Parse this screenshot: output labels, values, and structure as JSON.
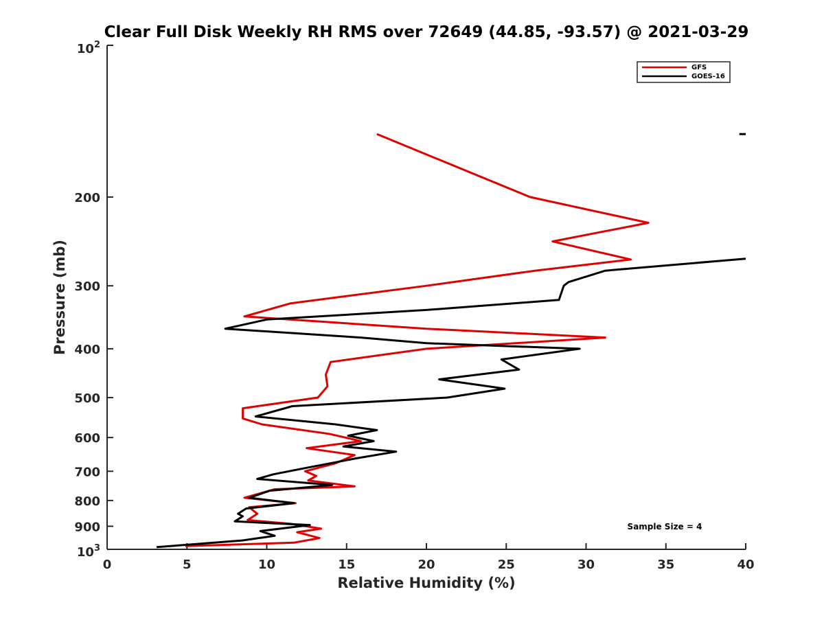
{
  "chart_data": {
    "type": "line",
    "title": "Clear Full Disk Weekly RH RMS over 72649 (44.85, -93.57) @ 2021-03-29",
    "xlabel": "Relative Humidity (%)",
    "ylabel": "Pressure (mb)",
    "xlim": [
      0,
      40
    ],
    "ylim": [
      100,
      1000
    ],
    "y_scale": "log",
    "y_reversed": true,
    "x_ticks": [
      "0",
      "5",
      "10",
      "15",
      "20",
      "25",
      "30",
      "35",
      "40"
    ],
    "y_ticks": [
      {
        "value": 200,
        "label": "200"
      },
      {
        "value": 300,
        "label": "300"
      },
      {
        "value": 400,
        "label": "400"
      },
      {
        "value": 500,
        "label": "500"
      },
      {
        "value": 600,
        "label": "600"
      },
      {
        "value": 700,
        "label": "700"
      },
      {
        "value": 800,
        "label": "800"
      },
      {
        "value": 900,
        "label": "900"
      }
    ],
    "y_end_labels": {
      "top_base": "10",
      "top_exp": "2",
      "bottom_base": "10",
      "bottom_exp": "3"
    },
    "grid": false,
    "legend_position": "top-right",
    "annotation": "Sample Size = 4",
    "series": [
      {
        "name": "GFS",
        "color": "#e00000",
        "points": [
          [
            16.9,
            150
          ],
          [
            26.5,
            200
          ],
          [
            33.9,
            225
          ],
          [
            27.9,
            245
          ],
          [
            32.8,
            266
          ],
          [
            26.8,
            280
          ],
          [
            20.0,
            300
          ],
          [
            11.5,
            325
          ],
          [
            8.6,
            345
          ],
          [
            20.0,
            365
          ],
          [
            31.2,
            380
          ],
          [
            20.0,
            400
          ],
          [
            14.0,
            425
          ],
          [
            13.7,
            450
          ],
          [
            13.8,
            475
          ],
          [
            13.2,
            500
          ],
          [
            8.5,
            525
          ],
          [
            8.5,
            550
          ],
          [
            9.7,
            565
          ],
          [
            13.9,
            590
          ],
          [
            15.9,
            610
          ],
          [
            12.5,
            630
          ],
          [
            15.5,
            650
          ],
          [
            14.3,
            675
          ],
          [
            12.4,
            700
          ],
          [
            13.1,
            715
          ],
          [
            12.6,
            730
          ],
          [
            15.5,
            750
          ],
          [
            10.5,
            760
          ],
          [
            8.6,
            790
          ],
          [
            11.8,
            810
          ],
          [
            8.9,
            825
          ],
          [
            9.4,
            850
          ],
          [
            8.8,
            875
          ],
          [
            11.5,
            890
          ],
          [
            13.4,
            910
          ],
          [
            11.9,
            925
          ],
          [
            13.3,
            950
          ],
          [
            11.7,
            970
          ],
          [
            4.9,
            985
          ]
        ]
      },
      {
        "name": "GOES-16",
        "color": "#000000",
        "points": [
          [
            40.0,
            265
          ],
          [
            31.2,
            280
          ],
          [
            28.9,
            295
          ],
          [
            28.6,
            300
          ],
          [
            28.3,
            320
          ],
          [
            20.0,
            335
          ],
          [
            10.0,
            350
          ],
          [
            7.4,
            365
          ],
          [
            15.9,
            380
          ],
          [
            20.0,
            390
          ],
          [
            29.6,
            400
          ],
          [
            24.7,
            420
          ],
          [
            25.8,
            440
          ],
          [
            20.8,
            460
          ],
          [
            24.9,
            480
          ],
          [
            21.3,
            500
          ],
          [
            11.6,
            520
          ],
          [
            9.3,
            545
          ],
          [
            14.3,
            565
          ],
          [
            16.9,
            580
          ],
          [
            15.1,
            595
          ],
          [
            16.7,
            610
          ],
          [
            14.8,
            625
          ],
          [
            18.1,
            640
          ],
          [
            15.6,
            660
          ],
          [
            12.4,
            690
          ],
          [
            10.4,
            710
          ],
          [
            9.4,
            725
          ],
          [
            14.1,
            745
          ],
          [
            10.2,
            765
          ],
          [
            8.9,
            790
          ],
          [
            11.7,
            810
          ],
          [
            8.7,
            830
          ],
          [
            8.2,
            850
          ],
          [
            8.5,
            860
          ],
          [
            8.0,
            880
          ],
          [
            12.7,
            895
          ],
          [
            9.6,
            920
          ],
          [
            10.5,
            940
          ],
          [
            8.5,
            960
          ],
          [
            3.1,
            990
          ]
        ]
      }
    ],
    "extra_marks": [
      {
        "color": "#000000",
        "from": [
          39.6,
          150
        ],
        "to": [
          40.0,
          150
        ]
      }
    ]
  }
}
